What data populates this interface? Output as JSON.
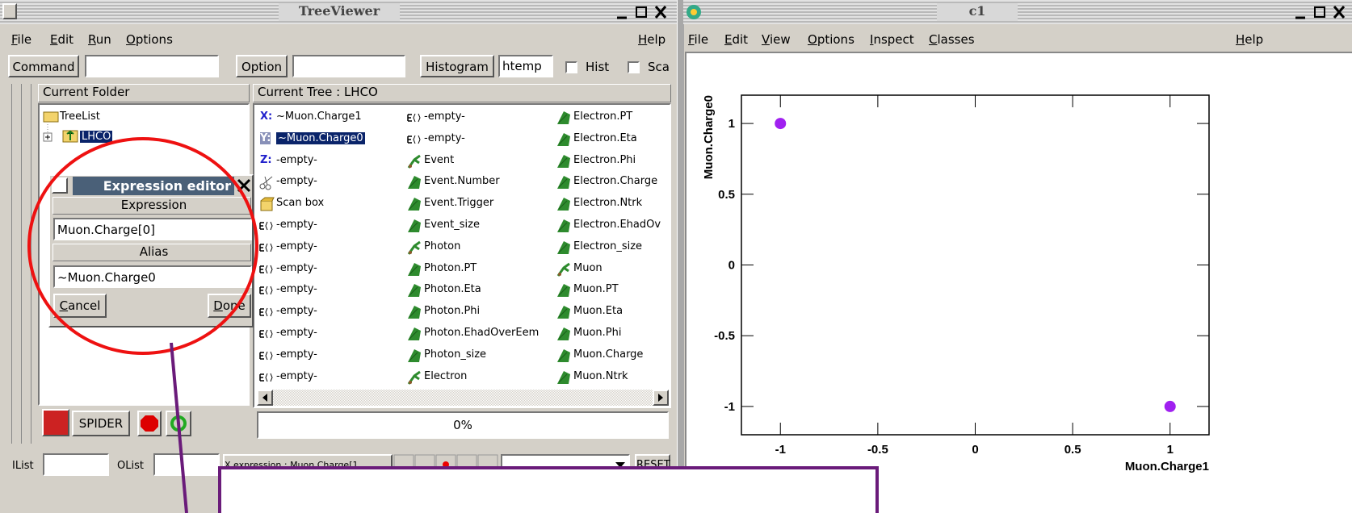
{
  "tree_viewer": {
    "title": "TreeViewer",
    "menu": [
      "File",
      "Edit",
      "Run",
      "Options"
    ],
    "help": "Help",
    "toolbar": {
      "command_label": "Command",
      "option_label": "Option",
      "histogram_label": "Histogram",
      "histogram_value": "htemp",
      "hist_checkbox": "Hist",
      "scan_checkbox": "Sca"
    },
    "folder_panel": {
      "header": "Current Folder",
      "items": [
        "TreeList",
        "LHCO"
      ]
    },
    "tree_panel": {
      "header": "Current Tree : LHCO",
      "columns": [
        [
          {
            "prefix": "X:",
            "label": "~Muon.Charge1",
            "icon": "axis"
          },
          {
            "prefix": "Y:",
            "label": "~Muon.Charge0",
            "icon": "axis",
            "selected": true
          },
          {
            "prefix": "Z:",
            "label": "-empty-",
            "icon": "axis"
          },
          {
            "label": "-empty-",
            "icon": "cut"
          },
          {
            "label": "Scan box",
            "icon": "scan"
          },
          {
            "label": "-empty-",
            "icon": "expr"
          },
          {
            "label": "-empty-",
            "icon": "expr"
          },
          {
            "label": "-empty-",
            "icon": "expr"
          },
          {
            "label": "-empty-",
            "icon": "expr"
          },
          {
            "label": "-empty-",
            "icon": "expr"
          },
          {
            "label": "-empty-",
            "icon": "expr"
          },
          {
            "label": "-empty-",
            "icon": "expr"
          },
          {
            "label": "-empty-",
            "icon": "expr"
          }
        ],
        [
          {
            "label": "-empty-",
            "icon": "expr"
          },
          {
            "label": "-empty-",
            "icon": "expr"
          },
          {
            "label": "Event",
            "icon": "branch"
          },
          {
            "label": "Event.Number",
            "icon": "leaf"
          },
          {
            "label": "Event.Trigger",
            "icon": "leaf"
          },
          {
            "label": "Event_size",
            "icon": "leaf"
          },
          {
            "label": "Photon",
            "icon": "branch"
          },
          {
            "label": "Photon.PT",
            "icon": "leaf"
          },
          {
            "label": "Photon.Eta",
            "icon": "leaf"
          },
          {
            "label": "Photon.Phi",
            "icon": "leaf"
          },
          {
            "label": "Photon.EhadOverEem",
            "icon": "leaf"
          },
          {
            "label": "Photon_size",
            "icon": "leaf"
          },
          {
            "label": "Electron",
            "icon": "branch"
          }
        ],
        [
          {
            "label": "Electron.PT",
            "icon": "leaf"
          },
          {
            "label": "Electron.Eta",
            "icon": "leaf"
          },
          {
            "label": "Electron.Phi",
            "icon": "leaf"
          },
          {
            "label": "Electron.Charge",
            "icon": "leaf"
          },
          {
            "label": "Electron.Ntrk",
            "icon": "leaf"
          },
          {
            "label": "Electron.EhadOv",
            "icon": "leaf"
          },
          {
            "label": "Electron_size",
            "icon": "leaf"
          },
          {
            "label": "Muon",
            "icon": "branch"
          },
          {
            "label": "Muon.PT",
            "icon": "leaf"
          },
          {
            "label": "Muon.Eta",
            "icon": "leaf"
          },
          {
            "label": "Muon.Phi",
            "icon": "leaf"
          },
          {
            "label": "Muon.Charge",
            "icon": "leaf"
          },
          {
            "label": "Muon.Ntrk",
            "icon": "leaf"
          }
        ]
      ]
    },
    "spider_button": "SPIDER",
    "progress": "0%",
    "bottom": {
      "ilist": "IList",
      "olist": "OList",
      "x_expression": "X expression : Muon.Charge[1",
      "reset": "RESET"
    }
  },
  "expression_editor": {
    "title": "Expression editor",
    "expression_label": "Expression",
    "expression": "Muon.Charge[0]",
    "alias_label": "Alias",
    "alias": "~Muon.Charge0",
    "cancel": "Cancel",
    "done": "Done"
  },
  "canvas": {
    "title": "c1",
    "menu": [
      "File",
      "Edit",
      "View",
      "Options",
      "Inspect",
      "Classes"
    ],
    "help": "Help",
    "plot": {
      "type": "scatter",
      "x_label": "Muon.Charge1",
      "y_label": "Muon.Charge0",
      "x": [
        -1,
        1
      ],
      "y": [
        1,
        -1
      ],
      "color": "#a020f0",
      "xlim": [
        -1.2,
        1.2
      ],
      "ylim": [
        -1.2,
        1.2
      ],
      "xticks": [
        -1,
        -0.5,
        0,
        0.5,
        1
      ],
      "yticks": [
        -1,
        -0.5,
        0,
        0.5,
        1
      ]
    }
  }
}
